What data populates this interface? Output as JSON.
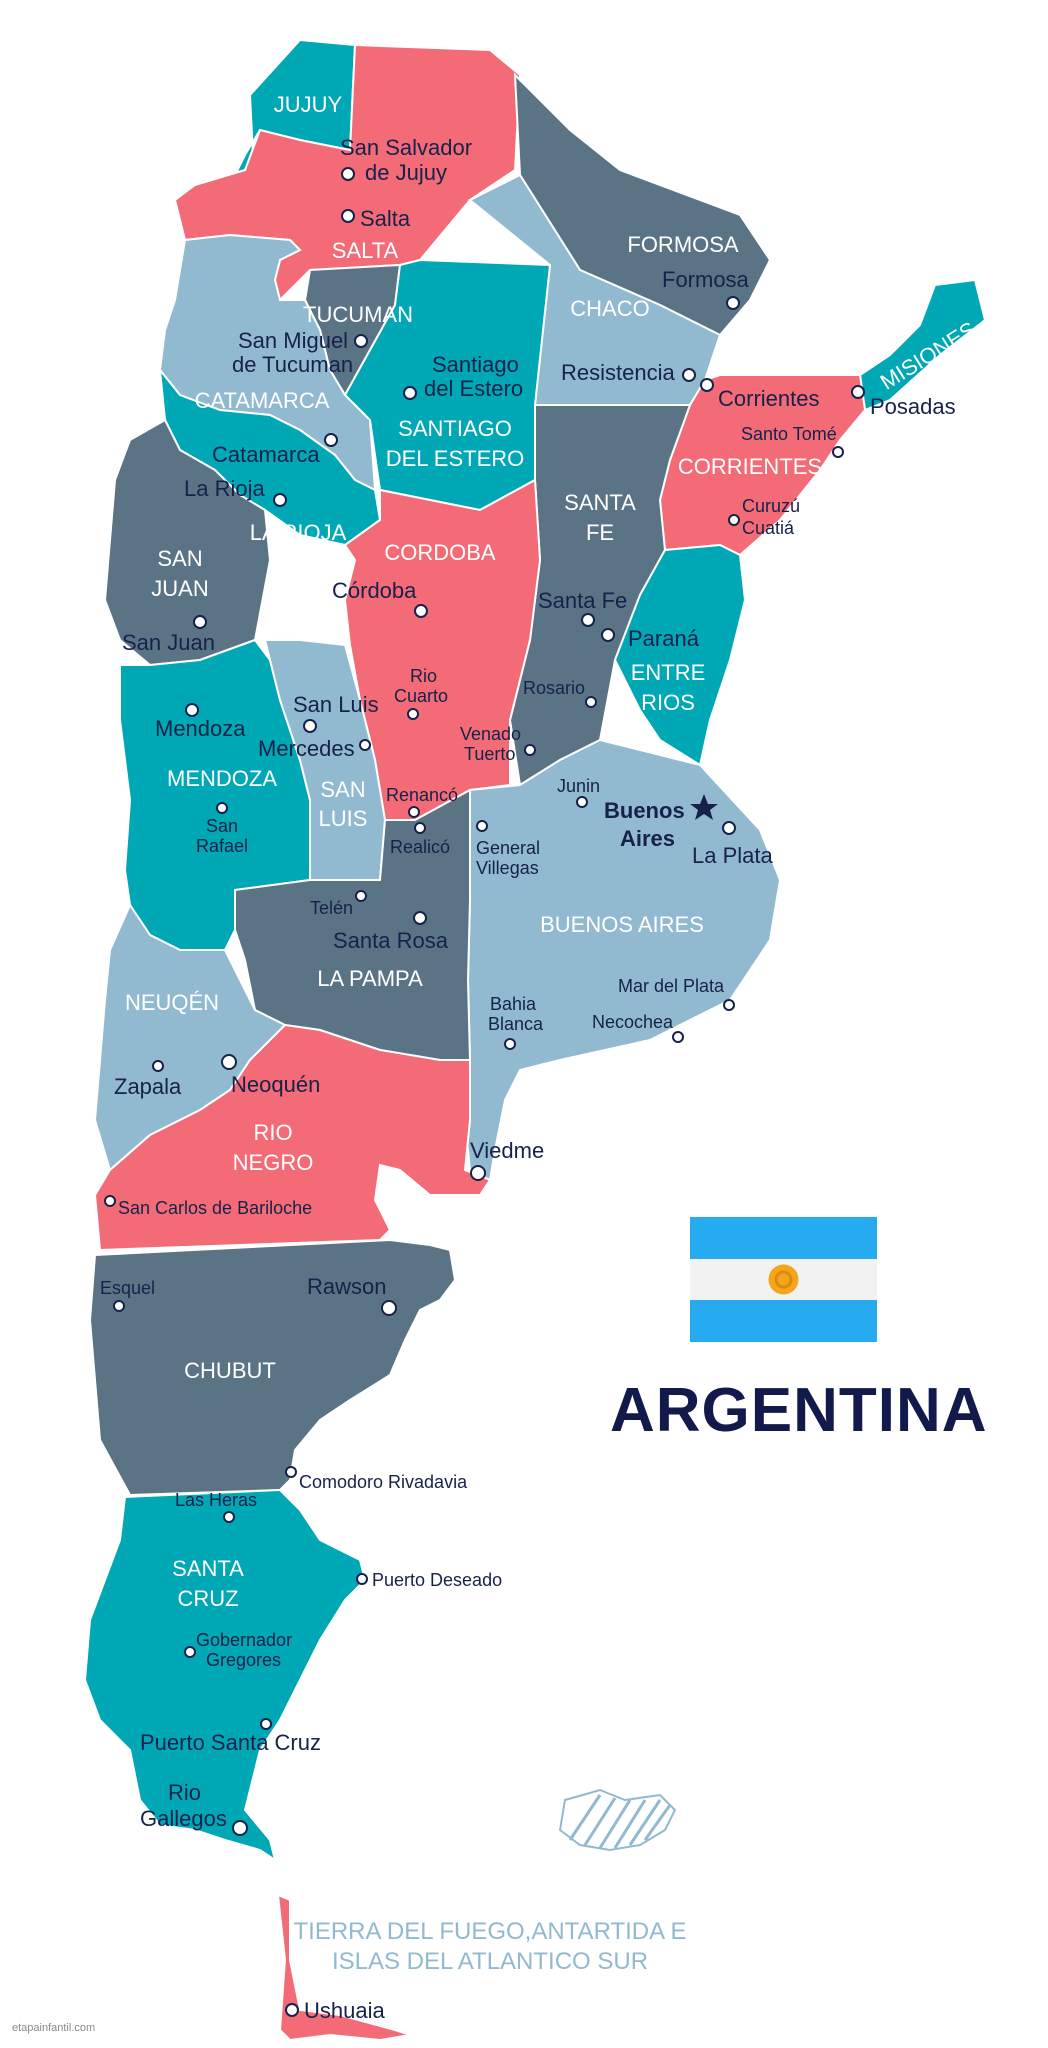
{
  "title": "ARGENTINA",
  "tierra_del_fuego_label": [
    "TIERRA DEL FUEGO,ANTARTIDA E",
    "ISLAS DEL ATLANTICO SUR"
  ],
  "watermark": "etapainfantil.com",
  "colors": {
    "teal": "#00a7b5",
    "coral": "#f26b76",
    "slate": "#5a7486",
    "light_blue": "#91b9cf",
    "navy_text": "#17224a",
    "flag_blue": "#26aaf0",
    "sun": "#f4a51c"
  },
  "provinces": {
    "jujuy": "JUJUY",
    "salta": "SALTA",
    "formosa": "FORMOSA",
    "chaco": "CHACO",
    "misiones": "MISIONES",
    "tucuman": "TUCUMAN",
    "catamarca": "CATAMARCA",
    "santiago_del_estero": [
      "SANTIAGO",
      "DEL ESTERO"
    ],
    "corrientes": "CORRIENTES",
    "santa_fe": [
      "SANTA",
      "FE"
    ],
    "la_rioja": "LA RIOJA",
    "san_juan": [
      "SAN",
      "JUAN"
    ],
    "cordoba": "CORDOBA",
    "entre_rios": [
      "ENTRE",
      "RIOS"
    ],
    "mendoza": "MENDOZA",
    "san_luis": [
      "SAN",
      "LUIS"
    ],
    "buenos_aires": "BUENOS  AIRES",
    "la_pampa": "LA PAMPA",
    "neuquen": "NEUQÉN",
    "rio_negro": [
      "RIO",
      "NEGRO"
    ],
    "chubut": "CHUBUT",
    "santa_cruz": [
      "SANTA",
      "CRUZ"
    ]
  },
  "cities": {
    "san_salvador_de_jujuy": [
      "San Salvador",
      "de Jujuy"
    ],
    "salta": "Salta",
    "formosa": "Formosa",
    "resistencia": "Resistencia",
    "corrientes": "Corrientes",
    "posadas": "Posadas",
    "santo_tome": "Santo Tomé",
    "curuzu_cuatia": [
      "Curuzú",
      "Cuatiá"
    ],
    "san_miguel_de_tucuman": [
      "San Miguel",
      "de Tucuman"
    ],
    "santiago_del_estero": [
      "Santiago",
      "del Estero"
    ],
    "catamarca": "Catamarca",
    "la_rioja": "La Rioja",
    "san_juan": "San Juan",
    "cordoba": "Córdoba",
    "santa_fe": "Santa Fe",
    "parana": "Paraná",
    "rosario": "Rosario",
    "rio_cuarto": [
      "Rio",
      "Cuarto"
    ],
    "venado_tuerto": [
      "Venado",
      "Tuerto"
    ],
    "san_luis": "San Luis",
    "mercedes": "Mercedes",
    "mendoza": "Mendoza",
    "san_rafael": [
      "San",
      "Rafael"
    ],
    "renanco": "Renancó",
    "realico": "Realicó",
    "junin": "Junin",
    "buenos_aires": [
      "Buenos",
      "Aires"
    ],
    "la_plata": "La Plata",
    "general_villegas": [
      "General",
      "Villegas"
    ],
    "telen": "Telén",
    "santa_rosa": "Santa Rosa",
    "mar_del_plata": "Mar del Plata",
    "bahia_blanca": [
      "Bahia",
      "Blanca"
    ],
    "necochea": "Necochea",
    "zapala": "Zapala",
    "neuquen": "Neoquén",
    "viedme": "Viedme",
    "san_carlos_de_bariloche": "San Carlos de Bariloche",
    "esquel": "Esquel",
    "rawson": "Rawson",
    "comodoro_rivadavia": "Comodoro Rivadavia",
    "las_heras": "Las Heras",
    "puerto_deseado": "Puerto Deseado",
    "gobernador_gregores": [
      "Gobernador",
      "Gregores"
    ],
    "puerto_santa_cruz": "Puerto Santa Cruz",
    "rio_gallegos": [
      "Rio",
      "Gallegos"
    ],
    "ushuaia": "Ushuaia"
  }
}
